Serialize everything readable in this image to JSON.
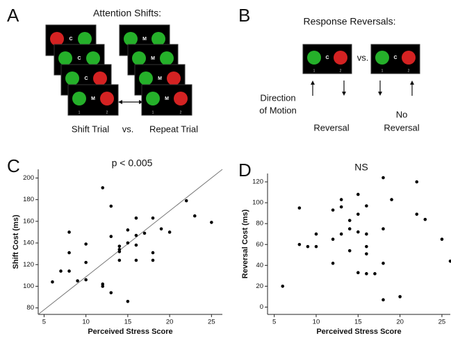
{
  "panels": {
    "A": {
      "label": "A",
      "title": "Attention Shifts:",
      "shift_stack_letters": [
        "C",
        "C",
        "C",
        "M"
      ],
      "repeat_stack_letters": [
        "M",
        "M",
        "M",
        "M"
      ],
      "position_labels": [
        "1",
        "2"
      ],
      "shift_label": "Shift Trial",
      "vs": "vs.",
      "repeat_label": "Repeat Trial"
    },
    "B": {
      "label": "B",
      "title": "Response Reversals:",
      "box_letters": [
        "C",
        "C"
      ],
      "position_labels": [
        "1",
        "2"
      ],
      "vs": "vs.",
      "direction_label": [
        "Direction",
        "of Motion"
      ],
      "reversal_label": [
        "Reversal"
      ],
      "no_reversal_label": [
        "No",
        "Reversal"
      ]
    }
  },
  "chart_data": [
    {
      "type": "scatter",
      "label": "C",
      "title": "p < 0.005",
      "x_label": "Perceived Stress Score",
      "y_label": "Shift Cost (ms)",
      "color": "#000000",
      "x": [
        6,
        7,
        8,
        8,
        8,
        9,
        10,
        10,
        10,
        12,
        12,
        12,
        13,
        13,
        13,
        14,
        14,
        14,
        14,
        15,
        15,
        15,
        16,
        16,
        16,
        16,
        17,
        18,
        18,
        18,
        19,
        20,
        22,
        23,
        25
      ],
      "values": [
        104,
        114,
        114,
        150,
        131,
        105,
        122,
        139,
        106,
        191,
        102,
        100,
        174,
        94,
        146,
        134,
        137,
        124,
        132,
        140,
        152,
        86,
        147,
        163,
        124,
        138,
        149,
        163,
        131,
        124,
        153,
        150,
        179,
        165,
        159
      ],
      "fit_line": {
        "x": [
          4.3,
          26.3
        ],
        "values": [
          74,
          208
        ]
      },
      "xlim": [
        4.3,
        26.3
      ],
      "ylim": [
        74,
        208
      ],
      "xticks": [
        5,
        10,
        15,
        20,
        25
      ],
      "yticks": [
        80,
        100,
        120,
        140,
        160,
        180,
        200
      ]
    },
    {
      "type": "scatter",
      "label": "D",
      "title": "NS",
      "x_label": "Perceived Stress Score",
      "y_label": "Reversal Cost (ms)",
      "color": "#000000",
      "x": [
        6,
        8,
        8,
        9,
        10,
        10,
        12,
        12,
        12,
        13,
        13,
        13,
        14,
        14,
        14,
        15,
        15,
        15,
        15,
        16,
        16,
        16,
        16,
        16,
        17,
        18,
        18,
        18,
        18,
        19,
        20,
        22,
        22,
        23,
        25,
        26
      ],
      "values": [
        20,
        95,
        60,
        58,
        70,
        58,
        93,
        65,
        42,
        103,
        96,
        70,
        83,
        75,
        54,
        108,
        89,
        72,
        33,
        97,
        70,
        58,
        51,
        32,
        32,
        124,
        75,
        42,
        7,
        103,
        10,
        120,
        89,
        84,
        65,
        44
      ],
      "xlim": [
        4.2,
        26
      ],
      "ylim": [
        -7,
        128
      ],
      "xticks": [
        5,
        10,
        15,
        20,
        25
      ],
      "yticks": [
        0,
        20,
        40,
        60,
        80,
        100,
        120
      ]
    }
  ]
}
